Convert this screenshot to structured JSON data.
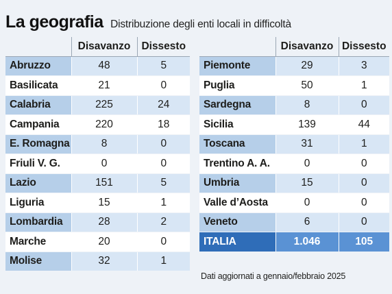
{
  "header": {
    "title": "La geografia",
    "subtitle": "Distribuzione degli enti locali in difficoltà"
  },
  "columns": {
    "disavanzo": "Disavanzo",
    "dissesto": "Dissesto"
  },
  "left_rows": [
    {
      "region": "Abruzzo",
      "disavanzo": "48",
      "dissesto": "5"
    },
    {
      "region": "Basilicata",
      "disavanzo": "21",
      "dissesto": "0"
    },
    {
      "region": "Calabria",
      "disavanzo": "225",
      "dissesto": "24"
    },
    {
      "region": "Campania",
      "disavanzo": "220",
      "dissesto": "18"
    },
    {
      "region": "E. Romagna",
      "disavanzo": "8",
      "dissesto": "0"
    },
    {
      "region": "Friuli V. G.",
      "disavanzo": "0",
      "dissesto": "0"
    },
    {
      "region": "Lazio",
      "disavanzo": "151",
      "dissesto": "5"
    },
    {
      "region": "Liguria",
      "disavanzo": "15",
      "dissesto": "1"
    },
    {
      "region": "Lombardia",
      "disavanzo": "28",
      "dissesto": "2"
    },
    {
      "region": "Marche",
      "disavanzo": "20",
      "dissesto": "0"
    },
    {
      "region": "Molise",
      "disavanzo": "32",
      "dissesto": "1"
    }
  ],
  "right_rows": [
    {
      "region": "Piemonte",
      "disavanzo": "29",
      "dissesto": "3"
    },
    {
      "region": "Puglia",
      "disavanzo": "50",
      "dissesto": "1"
    },
    {
      "region": "Sardegna",
      "disavanzo": "8",
      "dissesto": "0"
    },
    {
      "region": "Sicilia",
      "disavanzo": "139",
      "dissesto": "44"
    },
    {
      "region": "Toscana",
      "disavanzo": "31",
      "dissesto": "1"
    },
    {
      "region": "Trentino A. A.",
      "disavanzo": "0",
      "dissesto": "0"
    },
    {
      "region": "Umbria",
      "disavanzo": "15",
      "dissesto": "0"
    },
    {
      "region": "Valle d’Aosta",
      "disavanzo": "0",
      "dissesto": "0"
    },
    {
      "region": "Veneto",
      "disavanzo": "6",
      "dissesto": "0"
    }
  ],
  "total": {
    "region": "ITALIA",
    "disavanzo": "1.046",
    "dissesto": "105"
  },
  "note": "Dati aggiornati a gennaio/febbraio 2025",
  "colors": {
    "region_cell_blue": "#b6cfe9",
    "value_cell_blue": "#d8e6f5",
    "total_row": "#3d7cc9",
    "background": "#eef2f7"
  }
}
